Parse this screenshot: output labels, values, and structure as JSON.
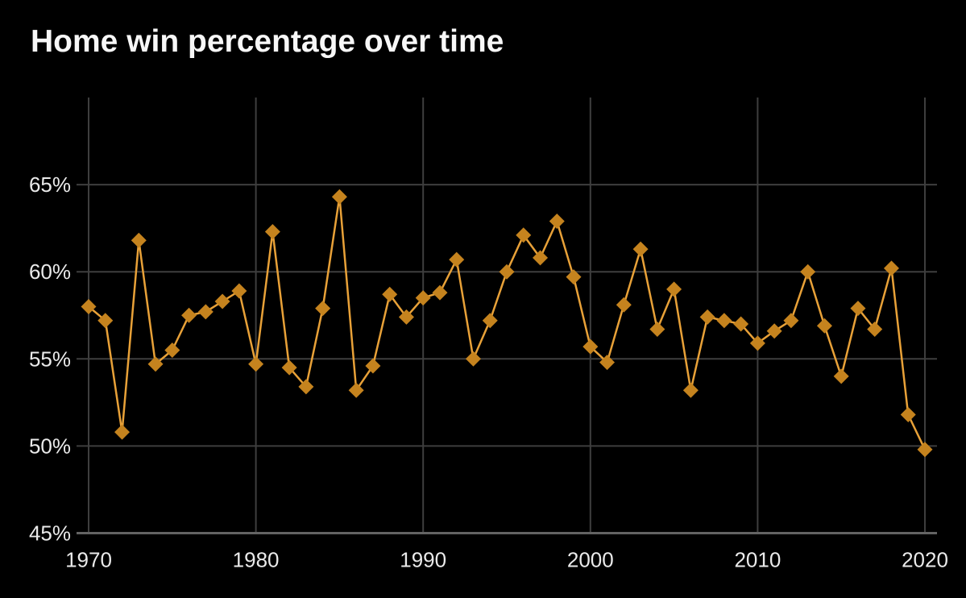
{
  "title": "Home win percentage over time",
  "colors": {
    "background": "#000000",
    "line": "#e8a138",
    "marker_fill": "#c5831e",
    "grid": "#3e3e3e",
    "axis": "#636363",
    "tick_text": "#eaeaea",
    "title_text": "#f7f7f7"
  },
  "chart_data": {
    "type": "line",
    "title": "Home win percentage over time",
    "xlabel": "",
    "ylabel": "",
    "marker": "diamond",
    "grid": true,
    "legend": false,
    "xlim": [
      1970,
      2020
    ],
    "ylim": [
      45,
      70
    ],
    "x_ticks": [
      1970,
      1980,
      1990,
      2000,
      2010,
      2020
    ],
    "x_tick_labels": [
      "1970",
      "1980",
      "1990",
      "2000",
      "2010",
      "2020"
    ],
    "y_ticks": [
      45,
      50,
      55,
      60,
      65
    ],
    "y_tick_labels": [
      "45%",
      "50%",
      "55%",
      "60%",
      "65%"
    ],
    "x": [
      1970,
      1971,
      1972,
      1973,
      1974,
      1975,
      1976,
      1977,
      1978,
      1979,
      1980,
      1981,
      1982,
      1983,
      1984,
      1985,
      1986,
      1987,
      1988,
      1989,
      1990,
      1991,
      1992,
      1993,
      1994,
      1995,
      1996,
      1997,
      1998,
      1999,
      2000,
      2001,
      2002,
      2003,
      2004,
      2005,
      2006,
      2007,
      2008,
      2009,
      2010,
      2011,
      2012,
      2013,
      2014,
      2015,
      2016,
      2017,
      2018,
      2019,
      2020
    ],
    "values": [
      58.0,
      57.2,
      50.8,
      61.8,
      54.7,
      55.5,
      57.5,
      57.7,
      58.3,
      58.9,
      54.7,
      62.3,
      54.5,
      53.4,
      57.9,
      64.3,
      53.2,
      54.6,
      58.7,
      57.4,
      58.5,
      58.8,
      60.7,
      55.0,
      57.2,
      60.0,
      62.1,
      60.8,
      62.9,
      59.7,
      55.7,
      54.8,
      58.1,
      61.3,
      56.7,
      59.0,
      53.2,
      57.4,
      57.2,
      57.0,
      55.9,
      56.6,
      57.2,
      60.0,
      56.9,
      54.0,
      57.9,
      56.7,
      60.2,
      51.8,
      49.8
    ]
  }
}
